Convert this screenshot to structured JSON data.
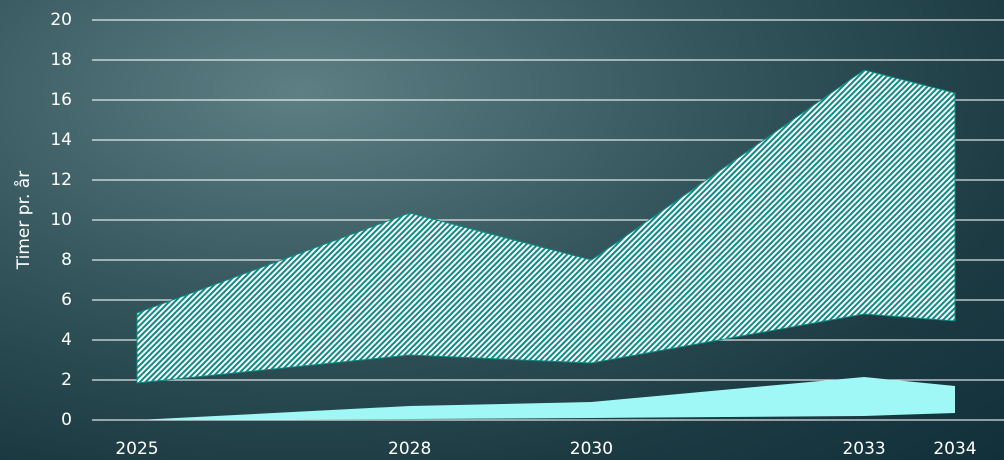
{
  "chart_data": {
    "type": "band",
    "y_label": "Timer pr. år",
    "x": [
      2025,
      2028,
      2030,
      2033,
      2034
    ],
    "bands": [
      {
        "fill": "hatch",
        "color": "#0d8a85",
        "lower": [
          1.85,
          3.25,
          2.85,
          5.3,
          4.95
        ],
        "upper": [
          5.35,
          10.35,
          8.0,
          17.5,
          16.35
        ]
      },
      {
        "fill": "solid",
        "color": "#9ff8f6",
        "lower": [
          0,
          0.05,
          0.1,
          0.2,
          0.35
        ],
        "upper": [
          0,
          0.7,
          0.9,
          2.15,
          1.7
        ]
      }
    ],
    "xlim": [
      2025,
      2034
    ],
    "ylim": [
      0,
      20
    ],
    "yticks": [
      0,
      2,
      4,
      6,
      8,
      10,
      12,
      14,
      16,
      18,
      20
    ],
    "grid": true
  }
}
